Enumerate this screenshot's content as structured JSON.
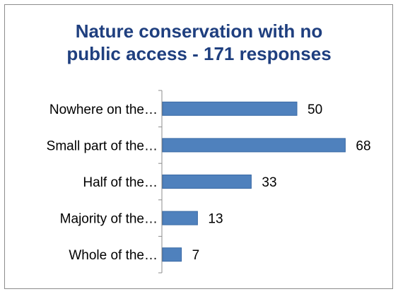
{
  "chart_data": {
    "type": "bar",
    "orientation": "horizontal",
    "title_lines": [
      "Nature conservation with no",
      "public access - 171 responses"
    ],
    "categories": [
      "Nowhere on the…",
      "Small part of the…",
      "Half of the…",
      "Majority of the…",
      "Whole of the…"
    ],
    "values": [
      50,
      68,
      33,
      13,
      7
    ],
    "data_labels": [
      "50",
      "68",
      "33",
      "13",
      "7"
    ],
    "xlim": [
      0,
      70
    ],
    "grid": false,
    "legend": "none",
    "colors": {
      "bar": "#4f81bd",
      "bar_edge": "#3a6aa5",
      "title": "#1f3f7f",
      "axis": "#8c8c8c"
    }
  }
}
